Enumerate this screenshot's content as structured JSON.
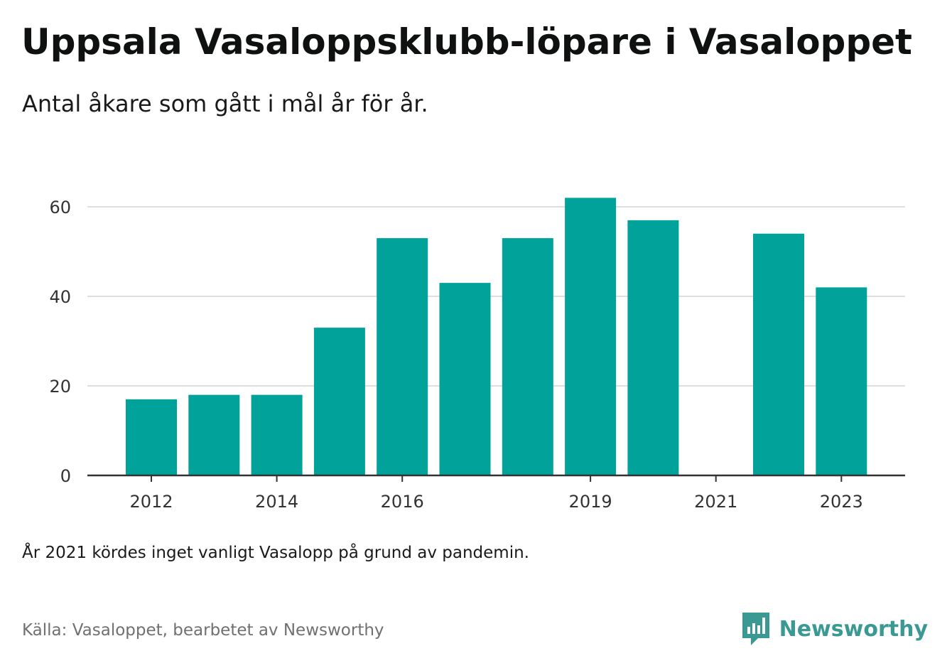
{
  "header": {
    "title": "Uppsala Vasaloppsklubb-löpare i Vasaloppet",
    "subtitle": "Antal åkare som gått i mål år för år."
  },
  "footer": {
    "note": "År 2021 kördes inget vanligt Vasalopp på grund av pandemin.",
    "source": "Källa: Vasaloppet, bearbetet av Newsworthy",
    "brand_name": "Newsworthy",
    "brand_icon": "newsworthy-logo-icon"
  },
  "colors": {
    "bar": "#00a29a",
    "grid": "#dedede",
    "axis": "#333333",
    "brand": "#3a9a93"
  },
  "chart_data": {
    "type": "bar",
    "categories": [
      "2012",
      "2013",
      "2014",
      "2015",
      "2016",
      "2017",
      "2018",
      "2019",
      "2020",
      "2021",
      "2022",
      "2023"
    ],
    "values": [
      17,
      18,
      18,
      33,
      53,
      43,
      53,
      62,
      57,
      null,
      54,
      42
    ],
    "x_tick_labels": [
      "2012",
      "2014",
      "2016",
      "2019",
      "2021",
      "2023"
    ],
    "y_ticks": [
      0,
      20,
      40,
      60
    ],
    "ylim": [
      0,
      70
    ],
    "grid": true,
    "legend": "none",
    "title": "Uppsala Vasaloppsklubb-löpare i Vasaloppet",
    "xlabel": "",
    "ylabel": ""
  }
}
